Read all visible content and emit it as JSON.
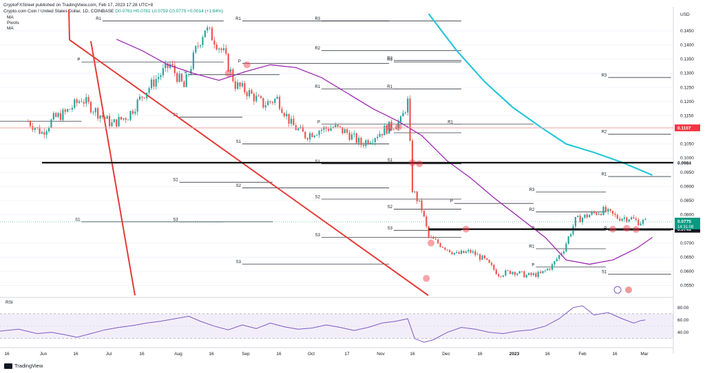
{
  "header": {
    "publisher_line": "CryptoFXStreet published on TradingView.com, Feb 17, 2023 17:28 UTC+8",
    "symbol_line": "Crypto.com Coin / United States Dollar, 1D, COINBASE",
    "ohlc_line": "O0.0761 H0.0781 L0.0759 C0.0775 +0.0014 (+1.84%)"
  },
  "indicators": [
    "MA",
    "Pivots",
    "MA"
  ],
  "brand": "TradingView",
  "currency": "USD",
  "colors": {
    "up": "#26a69a",
    "down": "#ef5350",
    "ma_short": "#9c27b0",
    "ma_long": "#26c6da",
    "trendline": "#e53935",
    "support": "#000000",
    "resistance": "#f23645",
    "rsi": "#7e57c2"
  },
  "chart_data": {
    "type": "line",
    "title": "Crypto.com Coin / United States Dollar, 1D, COINBASE",
    "y_ticks": [
      "0.1450",
      "0.1400",
      "0.1350",
      "0.1300",
      "0.1250",
      "0.1200",
      "0.1150",
      "0.1050",
      "0.1000",
      "0.0950",
      "0.0900",
      "0.0850",
      "0.0800",
      "0.0700",
      "0.0650",
      "0.0600",
      "0.0550"
    ],
    "ylim": [
      0.0515,
      0.1525
    ],
    "x_ticks": [
      "16",
      "Jun",
      "16",
      "Jul",
      "16",
      "Aug",
      "16",
      "Sep",
      "16",
      "Oct",
      "17",
      "Nov",
      "16",
      "Dec",
      "16",
      "2023",
      "16",
      "Feb",
      "16",
      "Mar"
    ],
    "xlim_days": [
      "2022-05-16",
      "2023-03-01"
    ],
    "price_path": [
      [
        "2022-05-28",
        0.113
      ],
      [
        "2022-06-03",
        0.109
      ],
      [
        "2022-06-08",
        0.114
      ],
      [
        "2022-06-13",
        0.116
      ],
      [
        "2022-06-20",
        0.121
      ],
      [
        "2022-06-27",
        0.116
      ],
      [
        "2022-07-03",
        0.112
      ],
      [
        "2022-07-10",
        0.115
      ],
      [
        "2022-07-16",
        0.122
      ],
      [
        "2022-07-22",
        0.128
      ],
      [
        "2022-07-28",
        0.133
      ],
      [
        "2022-08-03",
        0.125
      ],
      [
        "2022-08-08",
        0.138
      ],
      [
        "2022-08-12",
        0.146
      ],
      [
        "2022-08-16",
        0.142
      ],
      [
        "2022-08-20",
        0.137
      ],
      [
        "2022-08-25",
        0.126
      ],
      [
        "2022-08-31",
        0.123
      ],
      [
        "2022-09-06",
        0.119
      ],
      [
        "2022-09-12",
        0.121
      ],
      [
        "2022-09-18",
        0.112
      ],
      [
        "2022-09-24",
        0.108
      ],
      [
        "2022-09-30",
        0.11
      ],
      [
        "2022-10-06",
        0.111
      ],
      [
        "2022-10-12",
        0.109
      ],
      [
        "2022-10-18",
        0.105
      ],
      [
        "2022-10-24",
        0.108
      ],
      [
        "2022-10-30",
        0.111
      ],
      [
        "2022-11-04",
        0.113
      ],
      [
        "2022-11-07",
        0.12
      ],
      [
        "2022-11-09",
        0.089
      ],
      [
        "2022-11-13",
        0.082
      ],
      [
        "2022-11-16",
        0.072
      ],
      [
        "2022-11-22",
        0.069
      ],
      [
        "2022-11-28",
        0.066
      ],
      [
        "2022-12-04",
        0.067
      ],
      [
        "2022-12-10",
        0.064
      ],
      [
        "2022-12-16",
        0.059
      ],
      [
        "2022-12-22",
        0.06
      ],
      [
        "2022-12-28",
        0.0585
      ],
      [
        "2023-01-03",
        0.059
      ],
      [
        "2023-01-08",
        0.062
      ],
      [
        "2023-01-13",
        0.068
      ],
      [
        "2023-01-18",
        0.078
      ],
      [
        "2023-01-24",
        0.08
      ],
      [
        "2023-01-30",
        0.0815
      ],
      [
        "2023-02-05",
        0.079
      ],
      [
        "2023-02-10",
        0.079
      ],
      [
        "2023-02-14",
        0.0775
      ],
      [
        "2023-02-17",
        0.0775
      ]
    ],
    "series": [
      {
        "name": "MA",
        "points": [
          [
            "2022-07-05",
            0.142
          ],
          [
            "2022-07-16",
            0.138
          ],
          [
            "2022-07-27",
            0.133
          ],
          [
            "2022-08-07",
            0.13
          ],
          [
            "2022-08-18",
            0.1275
          ],
          [
            "2022-08-29",
            0.1305
          ],
          [
            "2022-09-09",
            0.133
          ],
          [
            "2022-09-20",
            0.132
          ],
          [
            "2022-10-01",
            0.1285
          ],
          [
            "2022-10-12",
            0.123
          ],
          [
            "2022-10-23",
            0.1175
          ],
          [
            "2022-11-03",
            0.113
          ],
          [
            "2022-11-13",
            0.108
          ],
          [
            "2022-11-24",
            0.099
          ],
          [
            "2022-12-04",
            0.093
          ],
          [
            "2022-12-14",
            0.086
          ],
          [
            "2022-12-25",
            0.079
          ],
          [
            "2023-01-05",
            0.072
          ],
          [
            "2023-01-14",
            0.064
          ],
          [
            "2023-01-24",
            0.0625
          ],
          [
            "2023-02-03",
            0.064
          ],
          [
            "2023-02-13",
            0.068
          ],
          [
            "2023-02-20",
            0.072
          ]
        ]
      },
      {
        "name": "MA",
        "points": [
          [
            "2022-11-16",
            0.151
          ],
          [
            "2022-11-28",
            0.138
          ],
          [
            "2022-12-10",
            0.127
          ],
          [
            "2022-12-22",
            0.118
          ],
          [
            "2023-01-03",
            0.111
          ],
          [
            "2023-01-14",
            0.105
          ],
          [
            "2023-01-26",
            0.102
          ],
          [
            "2023-02-07",
            0.0985
          ],
          [
            "2023-02-20",
            0.094
          ]
        ]
      }
    ],
    "levels": [
      {
        "label": "0.1107",
        "value": 0.1107,
        "kind": "resistance"
      },
      {
        "label": "0.0984",
        "value": 0.0984,
        "kind": "support"
      },
      {
        "label": "0.0749",
        "value": 0.0749,
        "kind": "support"
      }
    ],
    "price_label": "0.0775",
    "countdown": "14:31:08",
    "pivots": [
      {
        "label": "R1",
        "value": 0.1485,
        "from": "2022-06-29",
        "to": "2022-08-20"
      },
      {
        "label": "P",
        "value": 0.134,
        "from": "2022-06-20",
        "to": "2022-08-20"
      },
      {
        "label": "S1",
        "value": 0.113,
        "from": "2022-05-16",
        "to": "2022-06-20"
      },
      {
        "label": "S1",
        "value": 0.0775,
        "from": "2022-06-20",
        "to": "2022-08-20"
      },
      {
        "label": "R1",
        "value": 0.1485,
        "from": "2022-08-28",
        "to": "2022-10-30"
      },
      {
        "label": "P",
        "value": 0.1295,
        "from": "2022-08-05",
        "to": "2022-09-13"
      },
      {
        "label": "P",
        "value": 0.1335,
        "from": "2022-08-28",
        "to": "2022-10-30"
      },
      {
        "label": "S1",
        "value": 0.1145,
        "from": "2022-08-01",
        "to": "2022-08-28"
      },
      {
        "label": "S1",
        "value": 0.105,
        "from": "2022-08-28",
        "to": "2022-10-30"
      },
      {
        "label": "S2",
        "value": 0.0915,
        "from": "2022-08-01",
        "to": "2022-09-10"
      },
      {
        "label": "S2",
        "value": 0.0895,
        "from": "2022-08-28",
        "to": "2022-10-30"
      },
      {
        "label": "S3",
        "value": 0.0775,
        "from": "2022-08-01",
        "to": "2022-09-10"
      },
      {
        "label": "S3",
        "value": 0.0625,
        "from": "2022-08-28",
        "to": "2022-10-30"
      },
      {
        "label": "R3",
        "value": 0.1485,
        "from": "2022-10-01",
        "to": "2022-11-30"
      },
      {
        "label": "R2",
        "value": 0.138,
        "from": "2022-10-01",
        "to": "2022-11-30"
      },
      {
        "label": "R1",
        "value": 0.1245,
        "from": "2022-10-01",
        "to": "2022-11-30"
      },
      {
        "label": "P",
        "value": 0.112,
        "from": "2022-10-01",
        "to": "2022-11-30"
      },
      {
        "label": "S1",
        "value": 0.098,
        "from": "2022-10-01",
        "to": "2022-11-30"
      },
      {
        "label": "S2",
        "value": 0.0855,
        "from": "2022-10-01",
        "to": "2022-11-30"
      },
      {
        "label": "S3",
        "value": 0.072,
        "from": "2022-10-01",
        "to": "2022-11-30"
      },
      {
        "label": "R3",
        "value": 0.134,
        "from": "2022-11-01",
        "to": "2022-11-30"
      },
      {
        "label": "R2",
        "value": 0.1345,
        "from": "2022-11-01",
        "to": "2022-11-30"
      },
      {
        "label": "R1",
        "value": 0.1245,
        "from": "2022-11-01",
        "to": "2022-11-30"
      },
      {
        "label": "P",
        "value": 0.109,
        "from": "2022-11-01",
        "to": "2022-11-30"
      },
      {
        "label": "S1",
        "value": 0.0985,
        "from": "2022-11-01",
        "to": "2022-11-30"
      },
      {
        "label": "S2",
        "value": 0.082,
        "from": "2022-11-01",
        "to": "2022-11-30"
      },
      {
        "label": "S3",
        "value": 0.0745,
        "from": "2022-11-01",
        "to": "2022-11-30"
      },
      {
        "label": "R1",
        "value": 0.112,
        "from": "2022-11-27",
        "to": "2022-12-31"
      },
      {
        "label": "P",
        "value": 0.084,
        "from": "2022-11-27",
        "to": "2022-12-31"
      },
      {
        "label": "R3",
        "value": 0.088,
        "from": "2023-01-01",
        "to": "2023-01-31"
      },
      {
        "label": "R2",
        "value": 0.081,
        "from": "2023-01-01",
        "to": "2023-01-31"
      },
      {
        "label": "P",
        "value": 0.0745,
        "from": "2023-01-01",
        "to": "2023-01-31"
      },
      {
        "label": "R1",
        "value": 0.068,
        "from": "2023-01-01",
        "to": "2023-01-31"
      },
      {
        "label": "P",
        "value": 0.0615,
        "from": "2023-01-01",
        "to": "2023-01-31"
      },
      {
        "label": "R3",
        "value": 0.1285,
        "from": "2023-02-01",
        "to": "2023-02-28"
      },
      {
        "label": "R2",
        "value": 0.1085,
        "from": "2023-02-01",
        "to": "2023-02-28"
      },
      {
        "label": "R1",
        "value": 0.0935,
        "from": "2023-02-01",
        "to": "2023-02-28"
      },
      {
        "label": "P",
        "value": 0.0745,
        "from": "2023-02-01",
        "to": "2023-02-28"
      },
      {
        "label": "S1",
        "value": 0.059,
        "from": "2023-02-01",
        "to": "2023-02-28"
      }
    ],
    "rsi": {
      "ticks": [
        "80.00",
        "60.00",
        "40.00"
      ],
      "ylim": [
        22,
        92
      ],
      "bands": [
        70,
        30
      ],
      "values": [
        [
          "2022-05-16",
          42
        ],
        [
          "2022-05-24",
          45
        ],
        [
          "2022-06-01",
          38
        ],
        [
          "2022-06-07",
          40
        ],
        [
          "2022-06-13",
          36
        ],
        [
          "2022-06-18",
          32
        ],
        [
          "2022-06-24",
          38
        ],
        [
          "2022-06-30",
          44
        ],
        [
          "2022-07-06",
          48
        ],
        [
          "2022-07-12",
          51
        ],
        [
          "2022-07-18",
          55
        ],
        [
          "2022-07-24",
          58
        ],
        [
          "2022-07-30",
          62
        ],
        [
          "2022-08-05",
          66
        ],
        [
          "2022-08-10",
          58
        ],
        [
          "2022-08-16",
          50
        ],
        [
          "2022-08-22",
          44
        ],
        [
          "2022-08-28",
          52
        ],
        [
          "2022-09-03",
          46
        ],
        [
          "2022-09-09",
          55
        ],
        [
          "2022-09-15",
          49
        ],
        [
          "2022-09-21",
          45
        ],
        [
          "2022-09-27",
          47
        ],
        [
          "2022-10-03",
          52
        ],
        [
          "2022-10-09",
          48
        ],
        [
          "2022-10-15",
          43
        ],
        [
          "2022-10-21",
          48
        ],
        [
          "2022-10-27",
          55
        ],
        [
          "2022-11-02",
          58
        ],
        [
          "2022-11-07",
          62
        ],
        [
          "2022-11-10",
          30
        ],
        [
          "2022-11-14",
          24
        ],
        [
          "2022-11-18",
          28
        ],
        [
          "2022-11-24",
          40
        ],
        [
          "2022-11-30",
          48
        ],
        [
          "2022-12-06",
          45
        ],
        [
          "2022-12-12",
          40
        ],
        [
          "2022-12-18",
          38
        ],
        [
          "2022-12-24",
          42
        ],
        [
          "2022-12-30",
          44
        ],
        [
          "2023-01-05",
          50
        ],
        [
          "2023-01-11",
          62
        ],
        [
          "2023-01-17",
          80
        ],
        [
          "2023-01-21",
          83
        ],
        [
          "2023-01-26",
          68
        ],
        [
          "2023-02-01",
          72
        ],
        [
          "2023-02-07",
          62
        ],
        [
          "2023-02-12",
          55
        ],
        [
          "2023-02-15",
          59
        ],
        [
          "2023-02-17",
          60
        ]
      ]
    }
  }
}
